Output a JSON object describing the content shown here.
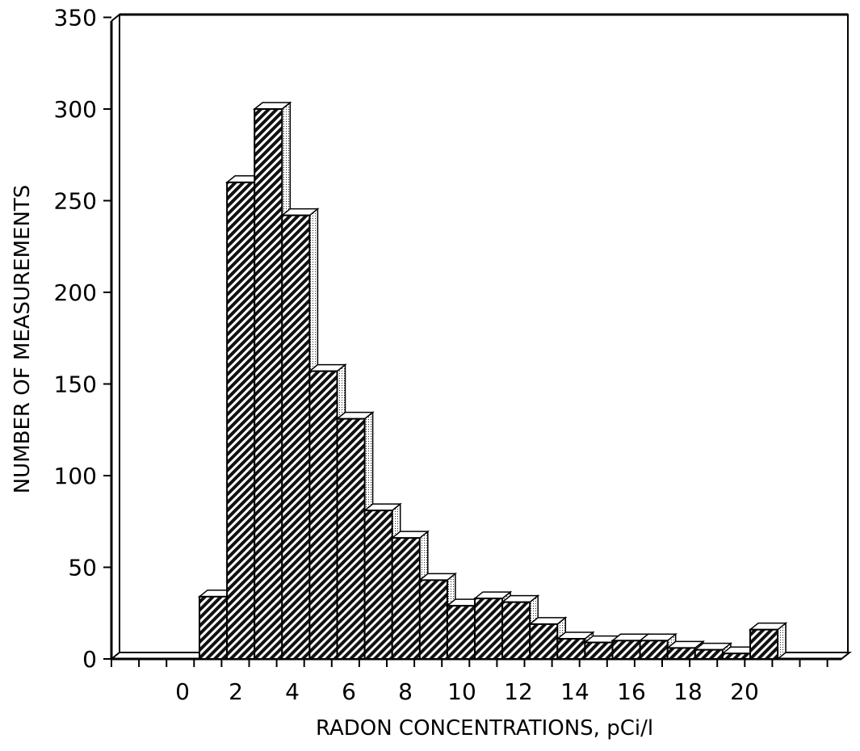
{
  "chart_data": {
    "type": "bar",
    "title": "",
    "xlabel": "RADON CONCENTRATIONS,  pCi/l",
    "ylabel": "NUMBER OF MEASUREMENTS",
    "ylim": [
      0,
      350
    ],
    "yticks": [
      0,
      50,
      100,
      150,
      200,
      250,
      300,
      350
    ],
    "xtick_labels": [
      "0",
      "2",
      "4",
      "6",
      "8",
      "10",
      "12",
      "14",
      "16",
      "18",
      "20"
    ],
    "grid": false,
    "style": "3d-hatched",
    "bar_color": "#000000",
    "series": [
      {
        "values": [
          34,
          260,
          300,
          242,
          157,
          131,
          81,
          66,
          43,
          29,
          33,
          31,
          19,
          11,
          9,
          10,
          10,
          6,
          5,
          3,
          16
        ]
      }
    ]
  }
}
